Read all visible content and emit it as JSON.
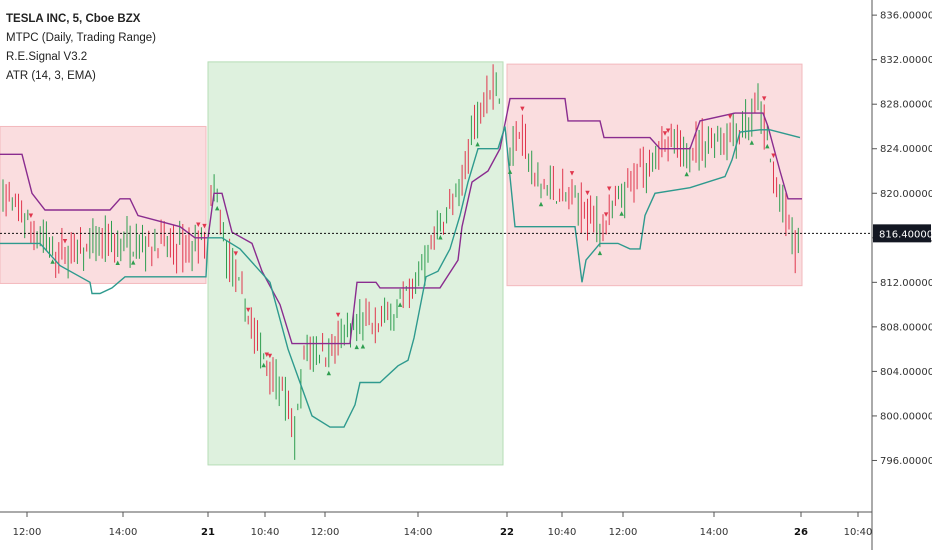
{
  "legend": {
    "title": "TESLA INC, 5, Cboe BZX",
    "indicators": [
      "MTPC (Daily, Trading Range)",
      "R.E.Signal V3.2",
      "ATR (14, 3, EMA)"
    ]
  },
  "chart_data": {
    "type": "candlestick",
    "ylim": [
      792,
      837
    ],
    "y_ticks": [
      "836.00000",
      "832.00000",
      "828.00000",
      "824.00000",
      "820.00000",
      "816.00000",
      "812.00000",
      "808.00000",
      "804.00000",
      "800.00000",
      "796.00000"
    ],
    "x_ticks": [
      {
        "label": "12:00",
        "bold": false
      },
      {
        "label": "14:00",
        "bold": false
      },
      {
        "label": "21",
        "bold": true
      },
      {
        "label": "10:40",
        "bold": false
      },
      {
        "label": "12:00",
        "bold": false
      },
      {
        "label": "14:00",
        "bold": false
      },
      {
        "label": "22",
        "bold": true
      },
      {
        "label": "10:40",
        "bold": false
      },
      {
        "label": "12:00",
        "bold": false
      },
      {
        "label": "14:00",
        "bold": false
      },
      {
        "label": "26",
        "bold": true
      },
      {
        "label": "10:40",
        "bold": false
      }
    ],
    "current_price": {
      "value": 816.4,
      "label": "816.40000"
    },
    "ranges": [
      {
        "session": "day-1",
        "color": "#f9d7d9",
        "high": 826.0,
        "low": 811.9
      },
      {
        "session": "21",
        "color": "#d8efd8",
        "high": 831.8,
        "low": 795.6
      },
      {
        "session": "22",
        "color": "#f9d7d9",
        "high": 831.6,
        "low": 811.7
      }
    ],
    "colors": {
      "up": "#2e9e4f",
      "down": "#e0364d",
      "upper_band": "#8a2c8f",
      "lower_band": "#2e9a8e"
    }
  }
}
